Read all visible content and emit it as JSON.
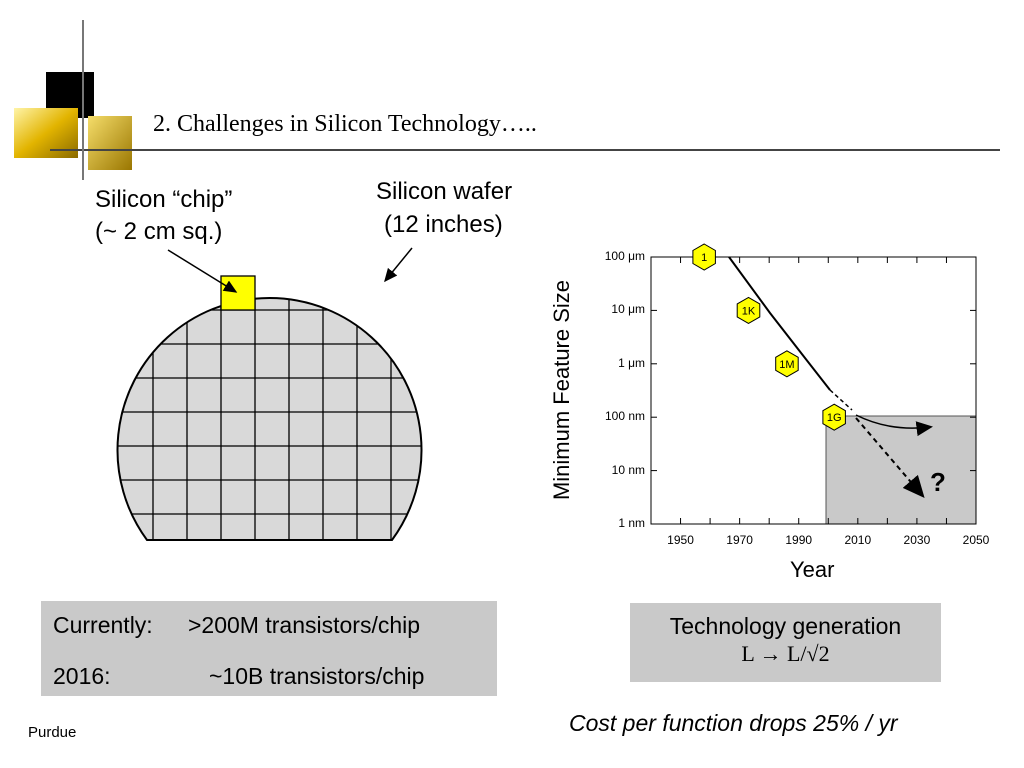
{
  "slide": {
    "title": "2.  Challenges in Silicon Technology…..",
    "footer": "Purdue"
  },
  "wafer": {
    "chip_label_line1": "Silicon “chip”",
    "chip_label_line2": "(~ 2 cm sq.)",
    "wafer_label_line1": "Silicon wafer",
    "wafer_label_line2": "(12 inches)",
    "wafer_color": "#d9d9d9",
    "chip_color": "#ffff00"
  },
  "transistor_box": {
    "line1_label": "Currently:",
    "line1_value": ">200M transistors/chip",
    "line2_label": "2016:",
    "line2_value": "~10B transistors/chip"
  },
  "generation_box": {
    "line1": "Technology generation",
    "line2": "L → L/√2"
  },
  "cost_note": "Cost per function drops 25% / yr",
  "chart_data": {
    "type": "line",
    "xlabel": "Year",
    "ylabel": "Minimum Feature Size",
    "x_ticks": [
      "1950",
      "1970",
      "1990",
      "2010",
      "2030",
      "2050"
    ],
    "y_ticks": [
      "100 μm",
      "10 μm",
      "1 μm",
      "100 nm",
      "10 nm",
      "1 nm"
    ],
    "y_scale": "log",
    "xlim": [
      1940,
      2050
    ],
    "series": [
      {
        "points": [
          {
            "x": 1958,
            "y": "100 μm",
            "label": "1"
          },
          {
            "x": 1973,
            "y": "10 μm",
            "label": "1K"
          },
          {
            "x": 1986,
            "y": "1 μm",
            "label": "1M"
          },
          {
            "x": 2002,
            "y": "100 nm",
            "label": "1G"
          }
        ]
      }
    ],
    "annotation": "?",
    "highlight_color": "#c9c9c9",
    "marker_color": "#ffff00"
  }
}
